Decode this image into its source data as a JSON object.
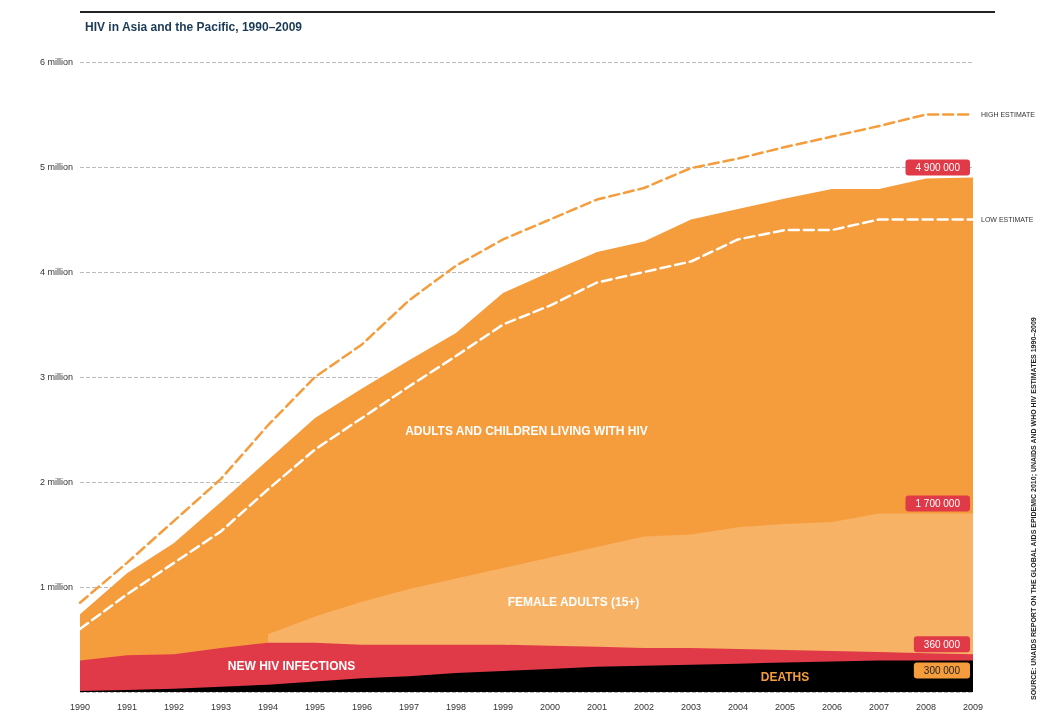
{
  "chart_data": {
    "type": "area",
    "title": "HIV in Asia and the Pacific, 1990–2009",
    "categories": [
      "1990",
      "1991",
      "1992",
      "1993",
      "1994",
      "1995",
      "1996",
      "1997",
      "1998",
      "1999",
      "2000",
      "2001",
      "2002",
      "2003",
      "2004",
      "2005",
      "2006",
      "2007",
      "2008",
      "2009"
    ],
    "series": [
      {
        "name": "ADULTS AND CHILDREN LIVING WITH HIV",
        "color": "#f59d3d",
        "values": [
          740000,
          1130000,
          1420000,
          1810000,
          2210000,
          2610000,
          2890000,
          3160000,
          3420000,
          3800000,
          4000000,
          4190000,
          4290000,
          4500000,
          4600000,
          4700000,
          4790000,
          4790000,
          4890000,
          4900000
        ],
        "value_labels": [
          null,
          null,
          null,
          null,
          null,
          null,
          null,
          null,
          null,
          null,
          null,
          null,
          null,
          null,
          null,
          null,
          null,
          null,
          null,
          "4 900 000"
        ]
      },
      {
        "name": "FEMALE ADULTS (15+)",
        "color": "#f7b265",
        "values": [
          null,
          null,
          null,
          null,
          550000,
          720000,
          860000,
          980000,
          1080000,
          1180000,
          1280000,
          1380000,
          1480000,
          1500000,
          1570000,
          1600000,
          1620000,
          1700000,
          1700000,
          1700000
        ],
        "value_labels": [
          null,
          null,
          null,
          null,
          null,
          null,
          null,
          null,
          null,
          null,
          null,
          null,
          null,
          null,
          null,
          null,
          null,
          null,
          null,
          "1 700 000"
        ]
      },
      {
        "name": "NEW HIV INFECTIONS",
        "color": "#e03a48",
        "values": [
          300000,
          350000,
          360000,
          420000,
          470000,
          470000,
          450000,
          450000,
          450000,
          450000,
          440000,
          430000,
          420000,
          420000,
          410000,
          400000,
          390000,
          380000,
          370000,
          360000
        ],
        "value_labels": [
          null,
          null,
          null,
          null,
          null,
          null,
          null,
          null,
          null,
          null,
          null,
          null,
          null,
          null,
          null,
          null,
          null,
          null,
          null,
          "360 000"
        ]
      },
      {
        "name": "DEATHS",
        "color": "#000000",
        "values": [
          10000,
          20000,
          30000,
          50000,
          70000,
          100000,
          130000,
          150000,
          180000,
          200000,
          220000,
          240000,
          250000,
          260000,
          270000,
          280000,
          290000,
          300000,
          300000,
          300000
        ],
        "value_labels": [
          null,
          null,
          null,
          null,
          null,
          null,
          null,
          null,
          null,
          null,
          null,
          null,
          null,
          null,
          null,
          null,
          null,
          null,
          null,
          "300 000"
        ]
      },
      {
        "name": "HIGH ESTIMATE",
        "type": "line",
        "line_style": "dashed",
        "color": "#f59d3d",
        "values": [
          850000,
          1230000,
          1630000,
          2030000,
          2540000,
          3000000,
          3310000,
          3730000,
          4060000,
          4310000,
          4500000,
          4690000,
          4800000,
          4990000,
          5080000,
          5190000,
          5290000,
          5390000,
          5500000,
          5500000
        ]
      },
      {
        "name": "LOW ESTIMATE",
        "type": "line",
        "line_style": "dashed",
        "color": "#ffffff",
        "values": [
          600000,
          930000,
          1230000,
          1530000,
          1930000,
          2310000,
          2610000,
          2910000,
          3200000,
          3500000,
          3680000,
          3900000,
          4000000,
          4100000,
          4310000,
          4400000,
          4400000,
          4500000,
          4500000,
          4500000
        ]
      }
    ],
    "ylim": [
      0,
      6000000
    ],
    "yticks": [
      {
        "value": 0,
        "label": null
      },
      {
        "value": 1000000,
        "label": "1 million"
      },
      {
        "value": 2000000,
        "label": "2 million"
      },
      {
        "value": 3000000,
        "label": "3 million"
      },
      {
        "value": 4000000,
        "label": "4 million"
      },
      {
        "value": 5000000,
        "label": "5 million"
      },
      {
        "value": 6000000,
        "label": "6 million"
      }
    ],
    "grid": "y",
    "legend": false,
    "annotations": [
      "SOURCE: UNAIDS REPORT ON THE GLOBAL AIDS EPIDEMIC 2010; UNAIDS AND WHO HIV ESTIMATES 1990–2009"
    ]
  }
}
